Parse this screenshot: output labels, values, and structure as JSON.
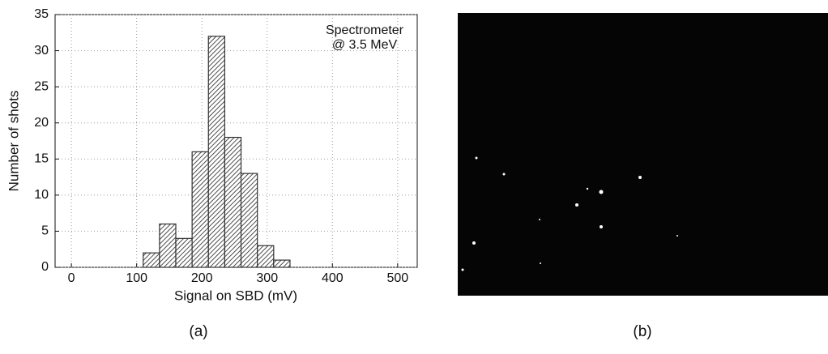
{
  "chart_data": {
    "type": "histogram",
    "bins": [
      110,
      135,
      160,
      185,
      210,
      235,
      260,
      285,
      310,
      335
    ],
    "values": [
      2,
      6,
      4,
      16,
      32,
      18,
      13,
      3,
      1
    ],
    "xlabel": "Signal on SBD (mV)",
    "ylabel": "Number of shots",
    "annotation": [
      "Spectrometer",
      "@ 3.5 MeV"
    ],
    "xlim": [
      -25,
      530
    ],
    "ylim": [
      0,
      35
    ],
    "xticks": [
      0,
      100,
      200,
      300,
      400,
      500
    ],
    "yticks": [
      0,
      5,
      10,
      15,
      20,
      25,
      30,
      35
    ],
    "grid": true,
    "color": "#333333",
    "panel_label": "(a)"
  },
  "image_panel": {
    "label": "(b)"
  }
}
